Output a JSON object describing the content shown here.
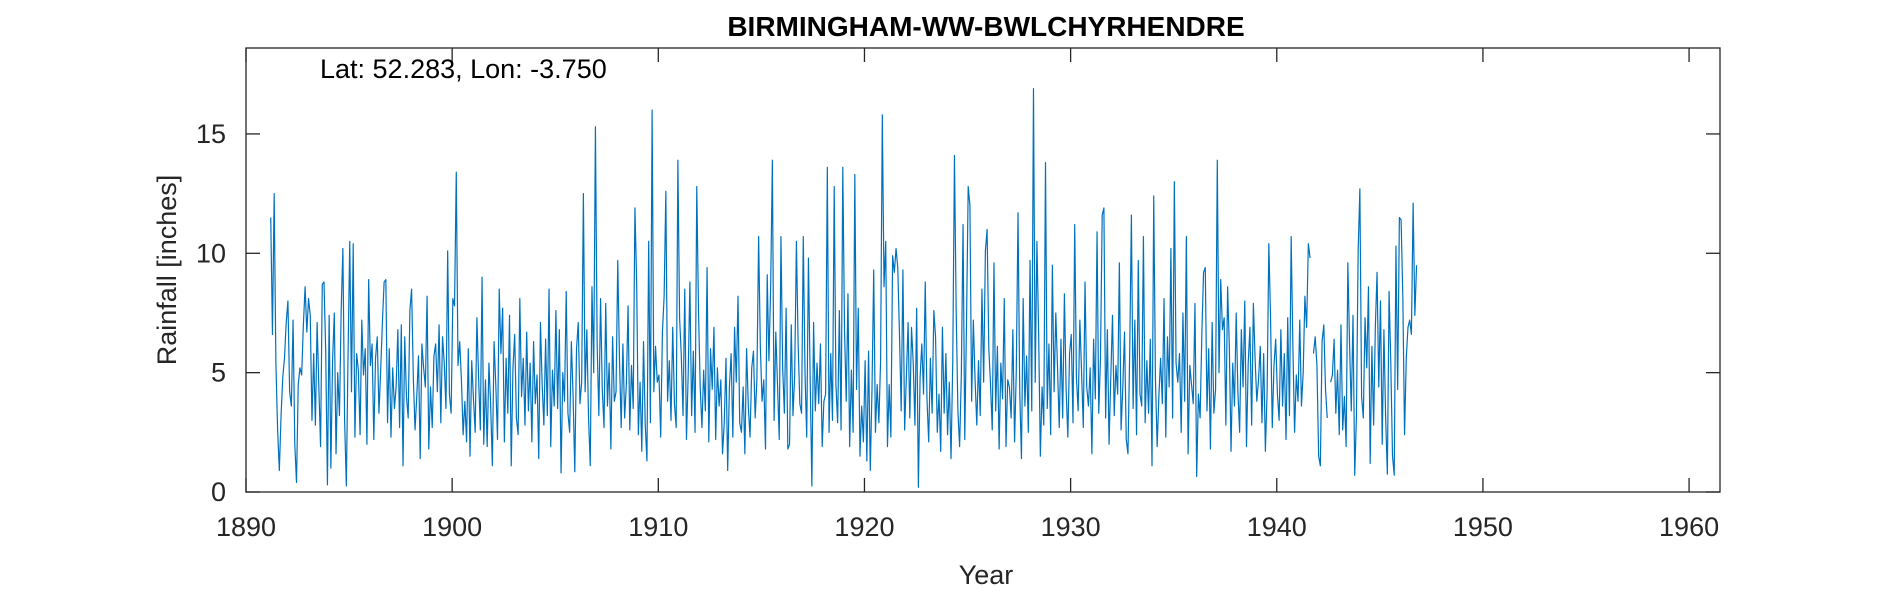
{
  "chart_data": {
    "type": "line",
    "title": "BIRMINGHAM-WW-BWLCHYRHENDRE",
    "annotation": "Lat: 52.283, Lon: -3.750",
    "xlabel": "Year",
    "ylabel": "Rainfall [inches]",
    "xlim": [
      1890,
      1961.5
    ],
    "ylim": [
      0,
      18.6
    ],
    "xticks": [
      1890,
      1900,
      1910,
      1920,
      1930,
      1940,
      1950,
      1960
    ],
    "yticks": [
      0,
      5,
      10,
      15
    ],
    "grid": false,
    "legend": "none",
    "line_color": "#0072BD",
    "series": [
      {
        "x_start": 1891.2,
        "x_step": 0.08333,
        "values": [
          11.5,
          6.6,
          12.5,
          5.4,
          2.6,
          0.9,
          3.2,
          4.8,
          5.6,
          7.1,
          8.0,
          4.2,
          3.6,
          7.2,
          2.0,
          0.4,
          4.5,
          5.2,
          4.9,
          7.0,
          8.6,
          6.7,
          8.1,
          7.4,
          3.0,
          5.8,
          2.8,
          7.1,
          4.4,
          1.9,
          8.7,
          8.8,
          5.9,
          0.3,
          7.4,
          1.0,
          5.5,
          7.5,
          1.6,
          5.0,
          3.2,
          7.6,
          10.2,
          3.0,
          0.25,
          5.7,
          10.5,
          4.2,
          10.4,
          2.3,
          5.8,
          5.1,
          2.4,
          7.2,
          4.9,
          6.0,
          2.0,
          8.9,
          5.3,
          6.2,
          2.2,
          5.6,
          6.5,
          3.3,
          5.1,
          7.1,
          8.8,
          8.9,
          2.9,
          6.0,
          2.3,
          5.2,
          3.5,
          4.4,
          6.8,
          2.7,
          7.0,
          1.1,
          6.5,
          4.0,
          3.1,
          7.6,
          8.5,
          4.8,
          2.6,
          4.0,
          5.7,
          1.4,
          6.2,
          5.2,
          4.4,
          8.2,
          1.8,
          4.4,
          2.7,
          5.7,
          6.2,
          4.2,
          7.0,
          2.9,
          6.5,
          5.4,
          3.5,
          10.1,
          4.1,
          3.3,
          8.1,
          7.8,
          13.4,
          5.3,
          6.3,
          4.7,
          2.4,
          3.8,
          2.1,
          6.0,
          1.5,
          5.5,
          3.9,
          2.5,
          7.3,
          4.8,
          2.6,
          9.0,
          2.0,
          4.7,
          1.9,
          5.4,
          3.7,
          1.1,
          6.3,
          4.5,
          2.2,
          8.5,
          5.8,
          7.7,
          2.1,
          5.6,
          3.3,
          7.4,
          1.1,
          5.2,
          6.6,
          3.1,
          2.4,
          8.1,
          4.0,
          5.6,
          2.8,
          6.7,
          3.4,
          5.4,
          2.1,
          6.3,
          3.7,
          4.9,
          1.4,
          7.1,
          4.5,
          2.8,
          6.4,
          3.2,
          8.5,
          1.9,
          5.1,
          3.6,
          7.6,
          3.5,
          6.8,
          0.8,
          5.0,
          3.8,
          8.4,
          3.3,
          2.5,
          6.3,
          4.0,
          0.85,
          6.0,
          7.1,
          3.7,
          4.6,
          12.5,
          4.2,
          6.8,
          3.1,
          1.1,
          8.6,
          5.0,
          15.3,
          6.2,
          3.2,
          8.1,
          4.3,
          2.7,
          7.9,
          3.6,
          5.4,
          1.8,
          6.5,
          3.8,
          4.2,
          9.7,
          5.6,
          2.7,
          6.2,
          3.1,
          4.5,
          7.8,
          2.6,
          5.3,
          3.5,
          11.9,
          8.8,
          2.4,
          4.6,
          1.7,
          6.3,
          2.8,
          1.3,
          10.5,
          2.9,
          16.0,
          4.2,
          6.1,
          4.6,
          4.9,
          2.3,
          6.7,
          8.2,
          12.6,
          3.8,
          5.5,
          3.0,
          6.9,
          3.7,
          2.7,
          13.9,
          7.3,
          5.7,
          3.2,
          8.5,
          2.2,
          4.9,
          8.8,
          3.2,
          5.9,
          2.5,
          12.8,
          7.6,
          4.4,
          2.7,
          5.1,
          3.4,
          9.4,
          2.1,
          6.0,
          4.3,
          6.9,
          2.2,
          5.2,
          3.6,
          4.7,
          1.6,
          2.9,
          5.6,
          0.9,
          4.4,
          5.8,
          2.3,
          6.9,
          4.6,
          8.2,
          2.9,
          2.5,
          4.4,
          1.6,
          6.0,
          3.6,
          2.3,
          5.2,
          5.9,
          3.1,
          4.7,
          10.7,
          6.1,
          3.8,
          4.7,
          1.8,
          9.1,
          5.5,
          8.5,
          13.9,
          3.0,
          6.7,
          4.5,
          2.2,
          10.7,
          5.2,
          3.3,
          7.7,
          1.8,
          2.0,
          7.0,
          3.2,
          4.9,
          10.5,
          6.2,
          3.7,
          3.3,
          10.7,
          5.0,
          2.3,
          9.8,
          4.8,
          0.25,
          7.1,
          3.4,
          5.4,
          3.7,
          6.2,
          1.9,
          3.8,
          4.1,
          13.6,
          2.5,
          5.8,
          3.0,
          12.8,
          4.5,
          2.9,
          7.6,
          2.6,
          13.6,
          6.8,
          3.8,
          8.3,
          1.9,
          5.1,
          2.5,
          13.3,
          4.3,
          7.7,
          1.5,
          3.6,
          2.1,
          5.5,
          1.3,
          5.9,
          0.9,
          4.3,
          9.3,
          2.5,
          4.5,
          2.9,
          5.5,
          15.8,
          8.6,
          10.5,
          1.9,
          4.5,
          2.3,
          9.9,
          9.2,
          10.2,
          9.4,
          6.6,
          3.4,
          9.3,
          2.6,
          4.8,
          7.1,
          3.1,
          6.9,
          5.4,
          2.8,
          7.7,
          0.2,
          4.8,
          6.2,
          4.1,
          8.8,
          3.9,
          2.1,
          5.6,
          3.3,
          7.6,
          6.5,
          2.5,
          4.1,
          1.7,
          6.9,
          3.3,
          5.8,
          2.4,
          4.6,
          1.4,
          5.4,
          14.1,
          7.6,
          3.4,
          1.9,
          4.9,
          11.2,
          2.2,
          7.0,
          12.8,
          12.0,
          3.8,
          7.2,
          4.7,
          2.8,
          5.5,
          3.2,
          8.5,
          4.6,
          10.1,
          11.0,
          6.0,
          4.5,
          2.6,
          9.6,
          3.4,
          6.1,
          1.8,
          5.4,
          3.9,
          8.1,
          1.9,
          4.7,
          4.4,
          3.1,
          6.8,
          2.1,
          5.1,
          11.7,
          4.2,
          1.4,
          8.1,
          3.6,
          5.7,
          2.5,
          9.7,
          3.4,
          16.9,
          4.6,
          10.5,
          6.7,
          1.5,
          4.4,
          2.8,
          13.8,
          3.5,
          6.2,
          2.4,
          9.5,
          4.2,
          7.5,
          5.2,
          2.7,
          6.4,
          3.1,
          8.3,
          4.3,
          2.3,
          5.8,
          6.6,
          2.9,
          11.2,
          4.8,
          3.4,
          7.2,
          5.0,
          2.7,
          8.8,
          4.4,
          3.6,
          5.2,
          1.6,
          6.4,
          3.9,
          10.9,
          3.3,
          5.6,
          11.6,
          11.9,
          3.1,
          6.8,
          2.0,
          4.8,
          7.4,
          3.2,
          5.3,
          4.1,
          9.6,
          2.6,
          4.4,
          6.7,
          2.2,
          1.6,
          5.8,
          11.6,
          3.5,
          7.2,
          2.4,
          9.7,
          4.1,
          3.6,
          10.7,
          2.9,
          5.5,
          3.3,
          6.4,
          1.1,
          12.4,
          4.7,
          1.9,
          4.0,
          5.6,
          3.7,
          8.1,
          2.3,
          6.5,
          4.4,
          10.2,
          3.1,
          13.0,
          5.4,
          4.6,
          5.8,
          2.5,
          7.5,
          3.8,
          10.7,
          1.6,
          5.3,
          4.5,
          3.7,
          7.9,
          0.65,
          4.1,
          3.1,
          6.6,
          9.2,
          9.4,
          3.4,
          6.0,
          1.8,
          7.1,
          3.3,
          4.3,
          13.9,
          5.0,
          8.9,
          6.8,
          7.3,
          2.8,
          8.6,
          6.1,
          1.7,
          5.4,
          3.6,
          7.5,
          4.2,
          2.5,
          6.8,
          4.4,
          8.0,
          1.9,
          5.4,
          6.9,
          2.8,
          7.9,
          5.6,
          3.8,
          4.7,
          6.1,
          2.9,
          5.8,
          1.7,
          4.2,
          10.4,
          7.3,
          2.7,
          5.3,
          6.4,
          4.1,
          3.0,
          6.8,
          3.6,
          5.8,
          2.2,
          7.3,
          3.2,
          10.7,
          6.1,
          2.5,
          4.9,
          3.8,
          7.2,
          3.6,
          5.0,
          8.2,
          6.9,
          10.4,
          9.8,
          null,
          5.8,
          6.5,
          5.3,
          1.5,
          1.1,
          6.3,
          7.0,
          4.3,
          3.1,
          null,
          4.6,
          4.9,
          6.4,
          3.3,
          5.1,
          2.4,
          7.0,
          2.6,
          4.0,
          1.9,
          9.6,
          6.2,
          3.4,
          7.4,
          0.7,
          3.2,
          10.1,
          12.7,
          4.0,
          3.1,
          7.3,
          5.2,
          8.6,
          1.2,
          6.1,
          2.8,
          6.9,
          9.2,
          4.4,
          8.0,
          2.0,
          6.8,
          3.1,
          0.75,
          8.4,
          5.4,
          1.5,
          0.7,
          10.3,
          4.3,
          11.5,
          11.4,
          8.2,
          2.4,
          5.6,
          6.9,
          7.2,
          6.6,
          12.1,
          7.4,
          9.5
        ]
      }
    ]
  }
}
